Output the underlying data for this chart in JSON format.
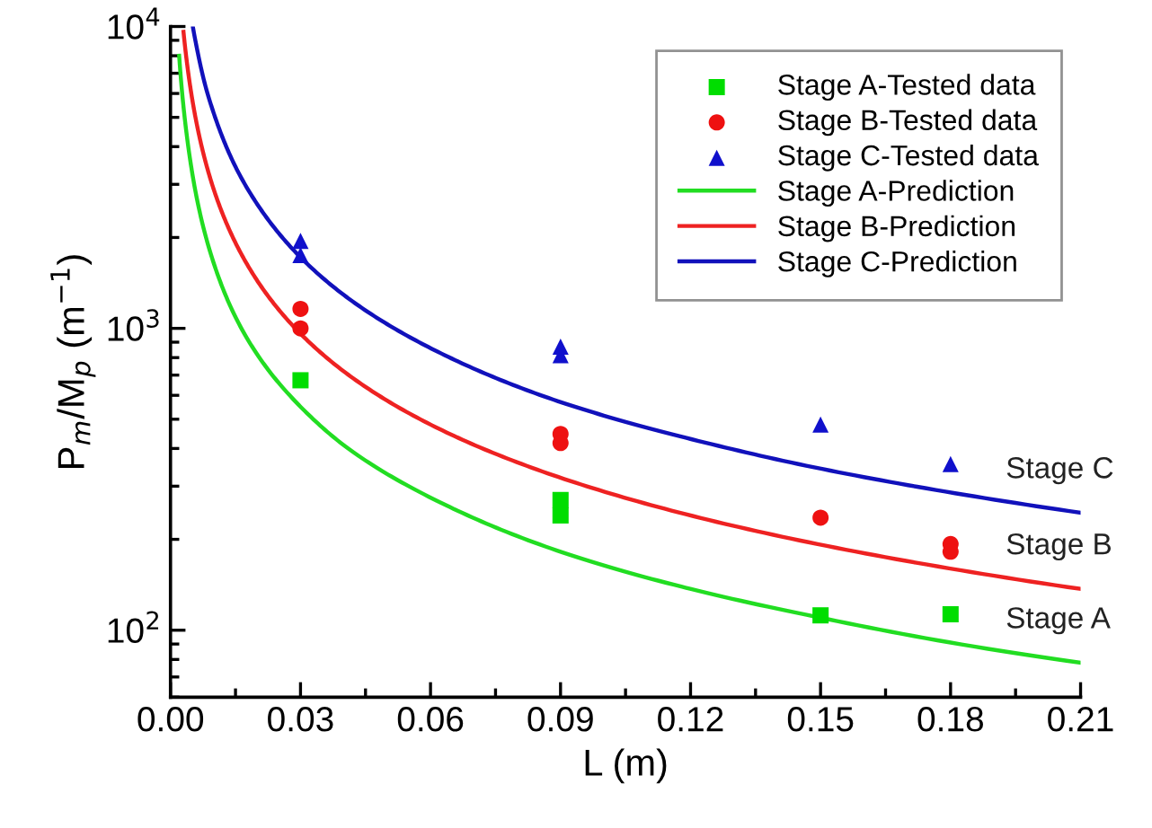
{
  "chart_data": {
    "type": "scatter",
    "xlabel": "L (m)",
    "ylabel": "P$_{m}$/M$_{p}$ (m$^{−1}$)",
    "log": "y",
    "xlim": [
      0.0,
      0.21
    ],
    "ylim": [
      60,
      10000
    ],
    "xticks": [
      {
        "value": 0.0,
        "label": "0.00"
      },
      0.03,
      0.06,
      0.09,
      0.12,
      0.15,
      0.18,
      0.21
    ],
    "yticks": [
      {
        "value": 100,
        "label": "10$^{2}$"
      },
      {
        "value": 1000,
        "label": "10$^{3}$"
      },
      {
        "value": 10000,
        "label": "10$^{4}$"
      }
    ],
    "grid": false,
    "legend": "top right",
    "series": [
      {
        "name": "Stage A-Tested data",
        "marker": "square",
        "color": "#00dd00",
        "x": [
          0.03,
          0.09,
          0.09,
          0.15,
          0.18
        ],
        "values": [
          673,
          240,
          270,
          112,
          113
        ]
      },
      {
        "name": "Stage B-Tested data",
        "marker": "circle",
        "color": "#ee1111",
        "x": [
          0.03,
          0.03,
          0.09,
          0.09,
          0.15,
          0.18,
          0.18
        ],
        "values": [
          1160,
          1000,
          447,
          417,
          236,
          193,
          182
        ]
      },
      {
        "name": "Stage C-Tested data",
        "marker": "triangle",
        "color": "#1010cc",
        "x": [
          0.03,
          0.03,
          0.09,
          0.09,
          0.15,
          0.18
        ],
        "values": [
          1950,
          1750,
          870,
          815,
          480,
          355
        ]
      },
      {
        "name": "Stage A-Prediction",
        "type": "line",
        "line_style": "solid",
        "color": "#22dd22",
        "x": [
          0.002,
          0.004,
          0.006,
          0.01,
          0.015,
          0.02,
          0.03,
          0.04,
          0.06,
          0.09,
          0.12,
          0.15,
          0.18,
          0.21
        ],
        "values": [
          8000,
          4100,
          2730,
          1640,
          1090,
          820,
          550,
          410,
          275,
          182,
          137,
          110,
          91,
          78
        ]
      },
      {
        "name": "Stage B-Prediction",
        "type": "line",
        "line_style": "solid",
        "color": "#ee2222",
        "x": [
          0.003,
          0.004,
          0.006,
          0.01,
          0.015,
          0.02,
          0.03,
          0.04,
          0.06,
          0.09,
          0.12,
          0.15,
          0.18,
          0.21
        ],
        "values": [
          9600,
          7200,
          4800,
          2880,
          1920,
          1440,
          960,
          720,
          480,
          320,
          240,
          192,
          160,
          137
        ]
      },
      {
        "name": "Stage C-Prediction",
        "type": "line",
        "line_style": "solid",
        "color": "#1111bb",
        "x": [
          0.0052,
          0.006,
          0.008,
          0.01,
          0.015,
          0.02,
          0.03,
          0.04,
          0.06,
          0.09,
          0.12,
          0.15,
          0.18,
          0.21
        ],
        "values": [
          9900,
          8600,
          6400,
          5150,
          3430,
          2580,
          1720,
          1290,
          860,
          570,
          430,
          343,
          286,
          245
        ]
      }
    ],
    "annotations": [
      "Stage C",
      "Stage B",
      "Stage A"
    ]
  }
}
